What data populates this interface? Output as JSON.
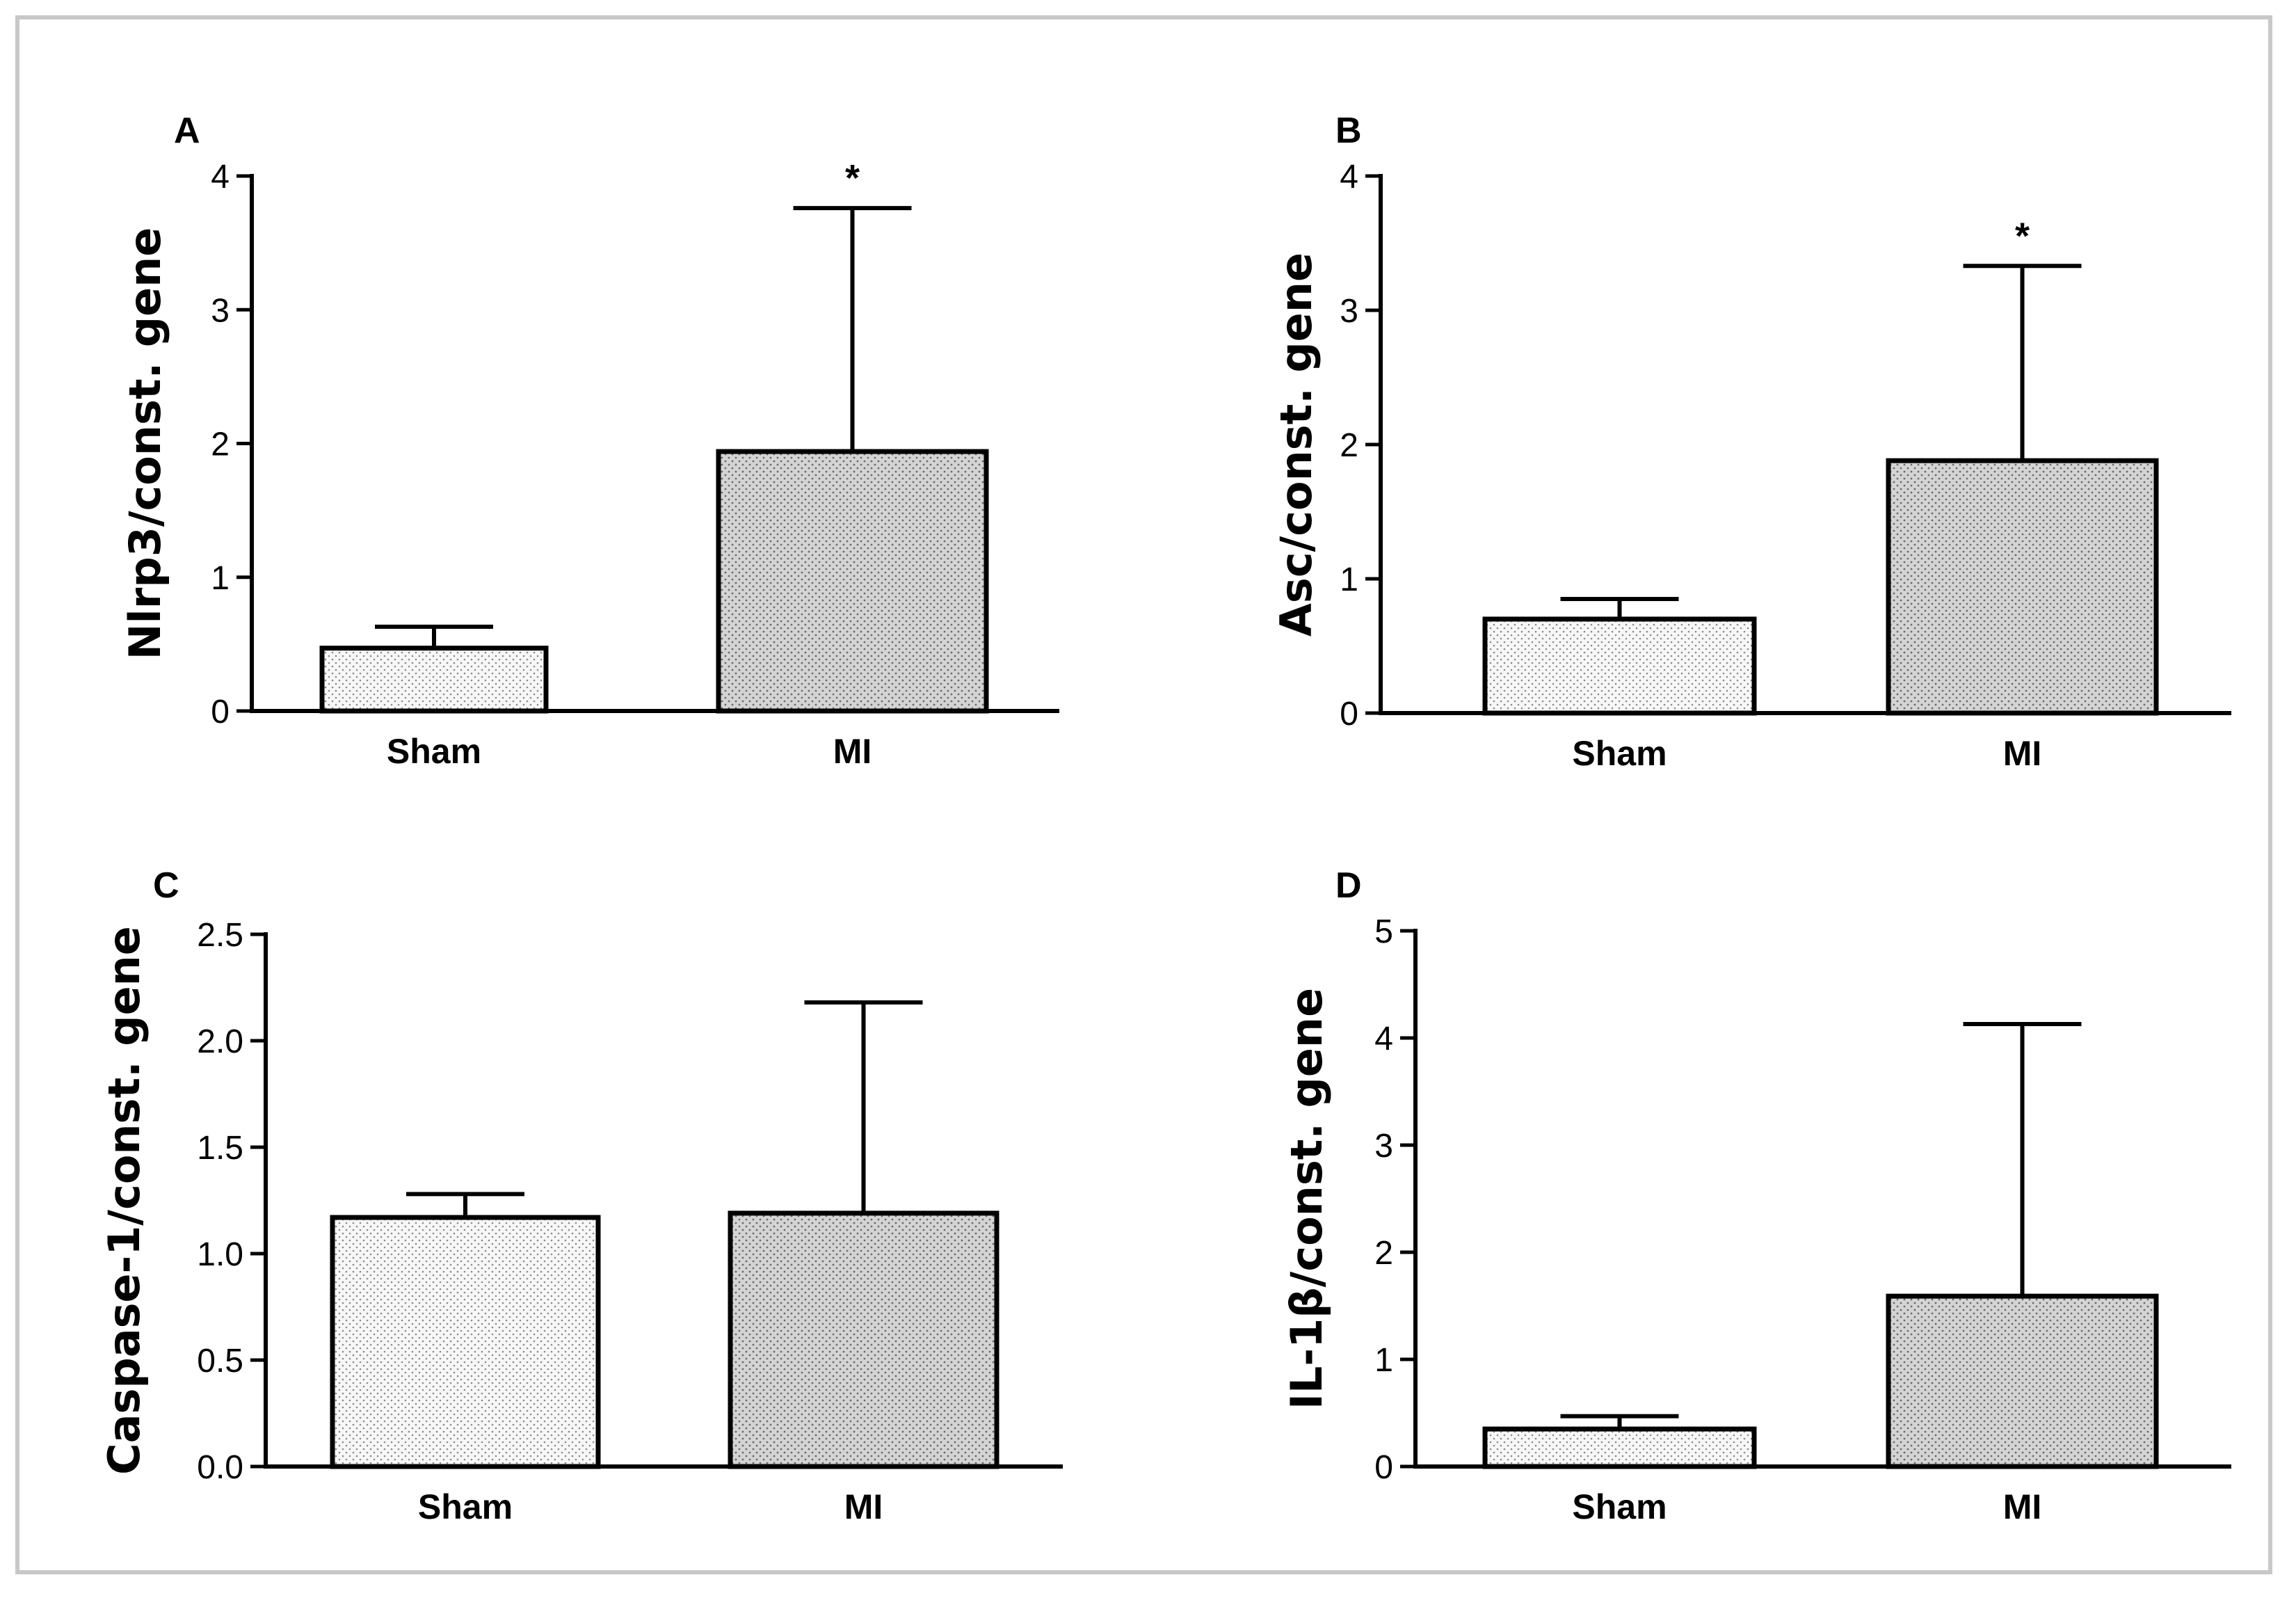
{
  "chart_data": [
    {
      "type": "bar",
      "panel": "A",
      "categories": [
        "Sham",
        "MI"
      ],
      "values": [
        0.47,
        1.94
      ],
      "error_upper": [
        0.63,
        3.76
      ],
      "significance": [
        "",
        "*"
      ],
      "ylabel": "Nlrp3/const. gene",
      "xlabel": "",
      "ylim": [
        0,
        4
      ],
      "yticks": [
        "0",
        "1",
        "2",
        "3",
        "4"
      ],
      "ytick_values": [
        0,
        1,
        2,
        3,
        4
      ]
    },
    {
      "type": "bar",
      "panel": "B",
      "categories": [
        "Sham",
        "MI"
      ],
      "values": [
        0.7,
        1.88
      ],
      "error_upper": [
        0.85,
        3.33
      ],
      "significance": [
        "",
        "*"
      ],
      "ylabel": "Asc/const. gene",
      "xlabel": "",
      "ylim": [
        0,
        4
      ],
      "yticks": [
        "0",
        "1",
        "2",
        "3",
        "4"
      ],
      "ytick_values": [
        0,
        1,
        2,
        3,
        4
      ]
    },
    {
      "type": "bar",
      "panel": "C",
      "categories": [
        "Sham",
        "MI"
      ],
      "values": [
        1.17,
        1.19
      ],
      "error_upper": [
        1.28,
        2.18
      ],
      "significance": [
        "",
        ""
      ],
      "ylabel": "Caspase-1/const. gene",
      "xlabel": "",
      "ylim": [
        0,
        2.5
      ],
      "yticks": [
        "0.0",
        "0.5",
        "1.0",
        "1.5",
        "2.0",
        "2.5"
      ],
      "ytick_values": [
        0,
        0.5,
        1.0,
        1.5,
        2.0,
        2.5
      ]
    },
    {
      "type": "bar",
      "panel": "D",
      "categories": [
        "Sham",
        "MI"
      ],
      "values": [
        0.35,
        1.59
      ],
      "error_upper": [
        0.47,
        4.13
      ],
      "significance": [
        "",
        ""
      ],
      "ylabel": "IL-1β/const. gene",
      "xlabel": "",
      "ylim": [
        0,
        5
      ],
      "yticks": [
        "0",
        "1",
        "2",
        "3",
        "4",
        "5"
      ],
      "ytick_values": [
        0,
        1,
        2,
        3,
        4,
        5
      ]
    }
  ],
  "colors": {
    "sham_fill": "#f4f4f4",
    "mi_fill": "#d2d2d2",
    "stroke": "#000000",
    "frame": "#c8c8c8"
  }
}
